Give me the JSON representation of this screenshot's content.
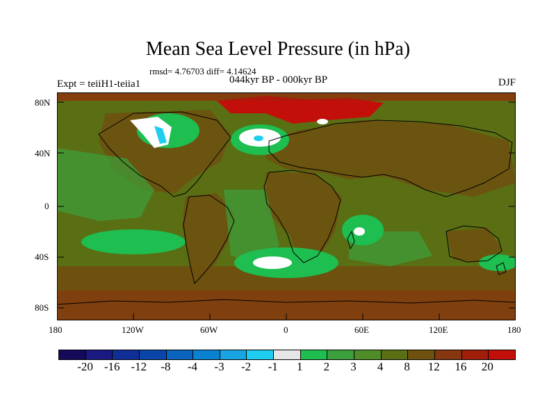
{
  "title": "Mean Sea Level Pressure (in hPa)",
  "stats": "rmsd= 4.76703  diff= 4.14624",
  "experiment": "Expt = teiiH1-teiia1",
  "period": "044kyr BP - 000kyr BP",
  "season": "DJF",
  "lat_ticks": [
    "80N",
    "40N",
    "0",
    "40S",
    "80S"
  ],
  "lon_ticks": [
    "180",
    "120W",
    "60W",
    "0",
    "60E",
    "120E",
    "180"
  ],
  "colorbar": {
    "labels": [
      "-20",
      "-16",
      "-12",
      "-8",
      "-4",
      "-3",
      "-2",
      "-1",
      "1",
      "2",
      "3",
      "4",
      "8",
      "12",
      "16",
      "20"
    ],
    "colors": [
      "#140a5a",
      "#1a1a82",
      "#0f2e96",
      "#0a46aa",
      "#0a64be",
      "#0a82d2",
      "#19a5e1",
      "#1ecdf0",
      "#e6e6e6",
      "#1ebe50",
      "#3ca03c",
      "#508c28",
      "#5a6e14",
      "#6e500f",
      "#87370f",
      "#a01e0a",
      "#c30f0a"
    ]
  },
  "map_colors": {
    "background": "#5a6e14",
    "light_green": "#3ca03c",
    "bright_green": "#1ebe50",
    "brown": "#6e500f",
    "red": "#c30f0a",
    "dark_red": "#a01e0a",
    "white": "#ffffff",
    "cyan": "#1ecdf0"
  }
}
